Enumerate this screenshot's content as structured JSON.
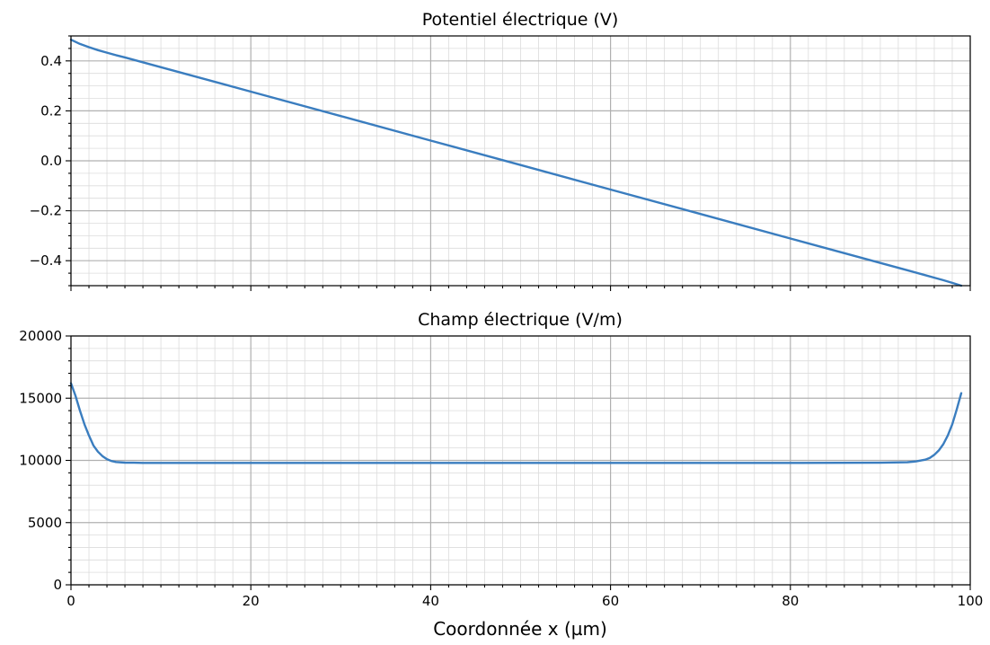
{
  "chart_data": [
    {
      "type": "line",
      "title": "Potentiel électrique (V)",
      "xlabel": "",
      "ylabel": "",
      "xlim": [
        0,
        100
      ],
      "ylim": [
        -0.5,
        0.5
      ],
      "xticks": [
        0,
        20,
        40,
        60,
        80,
        100
      ],
      "yticks": [
        -0.4,
        -0.2,
        0.0,
        0.2,
        0.4
      ],
      "ytick_labels": [
        "−0.4",
        "−0.2",
        "0.0",
        "0.2",
        "0.4"
      ],
      "grid": "major and minor",
      "show_xtick_labels": false,
      "series": [
        {
          "color": "#3a7dbf",
          "x": [
            0,
            1,
            2,
            3,
            4,
            5,
            6,
            10,
            20,
            30,
            40,
            50,
            60,
            70,
            80,
            90,
            93,
            95,
            96,
            97,
            98,
            99
          ],
          "y": [
            0.485,
            0.468,
            0.455,
            0.443,
            0.433,
            0.423,
            0.414,
            0.375,
            0.277,
            0.179,
            0.081,
            -0.017,
            -0.115,
            -0.213,
            -0.311,
            -0.409,
            -0.438,
            -0.458,
            -0.468,
            -0.478,
            -0.489,
            -0.5
          ]
        }
      ]
    },
    {
      "type": "line",
      "title": "Champ électrique (V/m)",
      "xlabel": "Coordonnée x (µm)",
      "ylabel": "",
      "xlim": [
        0,
        100
      ],
      "ylim": [
        0,
        20000
      ],
      "xticks": [
        0,
        20,
        40,
        60,
        80,
        100
      ],
      "yticks": [
        0,
        5000,
        10000,
        15000,
        20000
      ],
      "ytick_labels": [
        "0",
        "5000",
        "10000",
        "15000",
        "20000"
      ],
      "grid": "major and minor",
      "show_xtick_labels": true,
      "series": [
        {
          "color": "#3a7dbf",
          "x": [
            0,
            0.5,
            1,
            1.5,
            2,
            2.5,
            3,
            3.5,
            4,
            4.5,
            5,
            6,
            7,
            8,
            10,
            20,
            40,
            60,
            80,
            90,
            93,
            94,
            95,
            95.5,
            96,
            96.5,
            97,
            97.5,
            98,
            98.5,
            99
          ],
          "y": [
            16200,
            15200,
            14000,
            12900,
            12000,
            11200,
            10700,
            10350,
            10100,
            9950,
            9870,
            9820,
            9810,
            9800,
            9800,
            9800,
            9800,
            9800,
            9800,
            9810,
            9850,
            9920,
            10060,
            10200,
            10450,
            10800,
            11300,
            12000,
            12900,
            14100,
            15400
          ]
        }
      ]
    }
  ]
}
